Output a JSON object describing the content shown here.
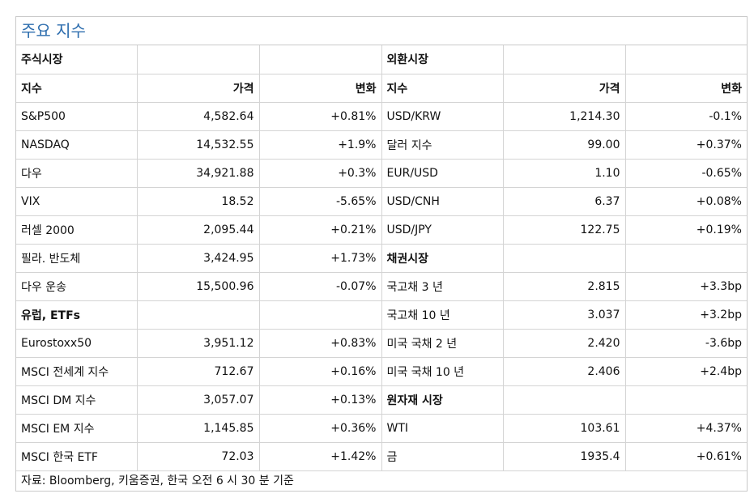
{
  "title": "주요 지수",
  "left_section": {
    "header": "주식시장",
    "col_headers": [
      "지수",
      "가격",
      "변화"
    ],
    "rows": [
      [
        "S&P500",
        "4,582.64",
        "+0.81%"
      ],
      [
        "NASDAQ",
        "14,532.55",
        "+1.9%"
      ],
      [
        "다우",
        "34,921.88",
        "+0.3%"
      ],
      [
        "VIX",
        "18.52",
        "-5.65%"
      ],
      [
        "러셀 2000",
        "2,095.44",
        "+0.21%"
      ],
      [
        "필라. 반도체",
        "3,424.95",
        "+1.73%"
      ],
      [
        "다우 운송",
        "15,500.96",
        "-0.07%"
      ]
    ],
    "subheader": "유럽, ETFs",
    "rows2": [
      [
        "Eurostoxx50",
        "3,951.12",
        "+0.83%"
      ],
      [
        "MSCI 전세계 지수",
        "712.67",
        "+0.16%"
      ],
      [
        "MSCI DM 지수",
        "3,057.07",
        "+0.13%"
      ],
      [
        "MSCI EM 지수",
        "1,145.85",
        "+0.36%"
      ],
      [
        "MSCI 한국 ETF",
        "72.03",
        "+1.42%"
      ]
    ]
  },
  "right_section": {
    "header": "외환시장",
    "col_headers": [
      "지수",
      "가격",
      "변화"
    ],
    "fx_rows": [
      [
        "USD/KRW",
        "1,214.30",
        "-0.1%"
      ],
      [
        "달러 지수",
        "99.00",
        "+0.37%"
      ],
      [
        "EUR/USD",
        "1.10",
        "-0.65%"
      ],
      [
        "USD/CNH",
        "6.37",
        "+0.08%"
      ],
      [
        "USD/JPY",
        "122.75",
        "+0.19%"
      ]
    ],
    "bond_header": "채권시장",
    "bond_rows": [
      [
        "국고채 3 년",
        "2.815",
        "+3.3bp"
      ],
      [
        "국고채 10 년",
        "3.037",
        "+3.2bp"
      ],
      [
        "미국 국채 2 년",
        "2.420",
        "-3.6bp"
      ],
      [
        "미국 국채 10 년",
        "2.406",
        "+2.4bp"
      ]
    ],
    "commodity_header": "원자재 시장",
    "commodity_rows": [
      [
        "WTI",
        "103.61",
        "+4.37%"
      ],
      [
        "금",
        "1935.4",
        "+0.61%"
      ]
    ]
  },
  "source": "자료: Bloomberg, 키움증권, 한국 오전 6 시 30 분 기준"
}
